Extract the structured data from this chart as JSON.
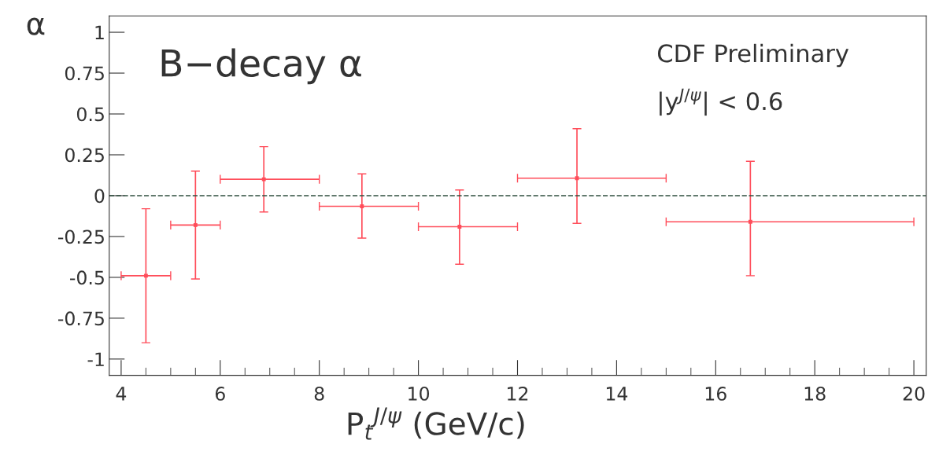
{
  "chart_data": {
    "type": "scatter",
    "title": "B−decay α",
    "xlabel": "P$_{t}$$^{J/ψ}$ (GeV/c)",
    "ylabel": "α",
    "annotations": [
      "CDF Preliminary",
      "|y$^{J/ψ}$| < 0.6"
    ],
    "series": [
      {
        "color": "#ff4d5a",
        "x": [
          4.5,
          5.5,
          6.88,
          8.86,
          10.83,
          13.2,
          16.7
        ],
        "values": [
          -0.49,
          -0.18,
          0.1,
          -0.065,
          -0.19,
          0.107,
          -0.16
        ],
        "errors": [
          [
            -0.9,
            -0.08
          ],
          [
            -0.51,
            0.15
          ],
          [
            -0.1,
            0.3
          ],
          [
            -0.26,
            0.133
          ],
          [
            -0.42,
            0.035
          ],
          [
            -0.17,
            0.41
          ],
          [
            -0.49,
            0.21
          ]
        ],
        "xerrors": [
          [
            4,
            5
          ],
          [
            5,
            6
          ],
          [
            6,
            8
          ],
          [
            8,
            10
          ],
          [
            10,
            12
          ],
          [
            12,
            15
          ],
          [
            15,
            20
          ]
        ]
      }
    ],
    "ref_lines": [
      {
        "axis": "y",
        "value": 0,
        "color": "#2f4f3f",
        "line_style": "dashed"
      }
    ],
    "xlim": [
      3.76,
      20.25
    ],
    "ylim": [
      -1.1,
      1.1
    ],
    "xticks": [
      4,
      6,
      8,
      10,
      12,
      14,
      16,
      18,
      20
    ],
    "yticks": [
      -1,
      -0.75,
      -0.5,
      -0.25,
      0,
      0.25,
      0.5,
      0.75,
      1
    ],
    "grid": false,
    "legend": false
  }
}
